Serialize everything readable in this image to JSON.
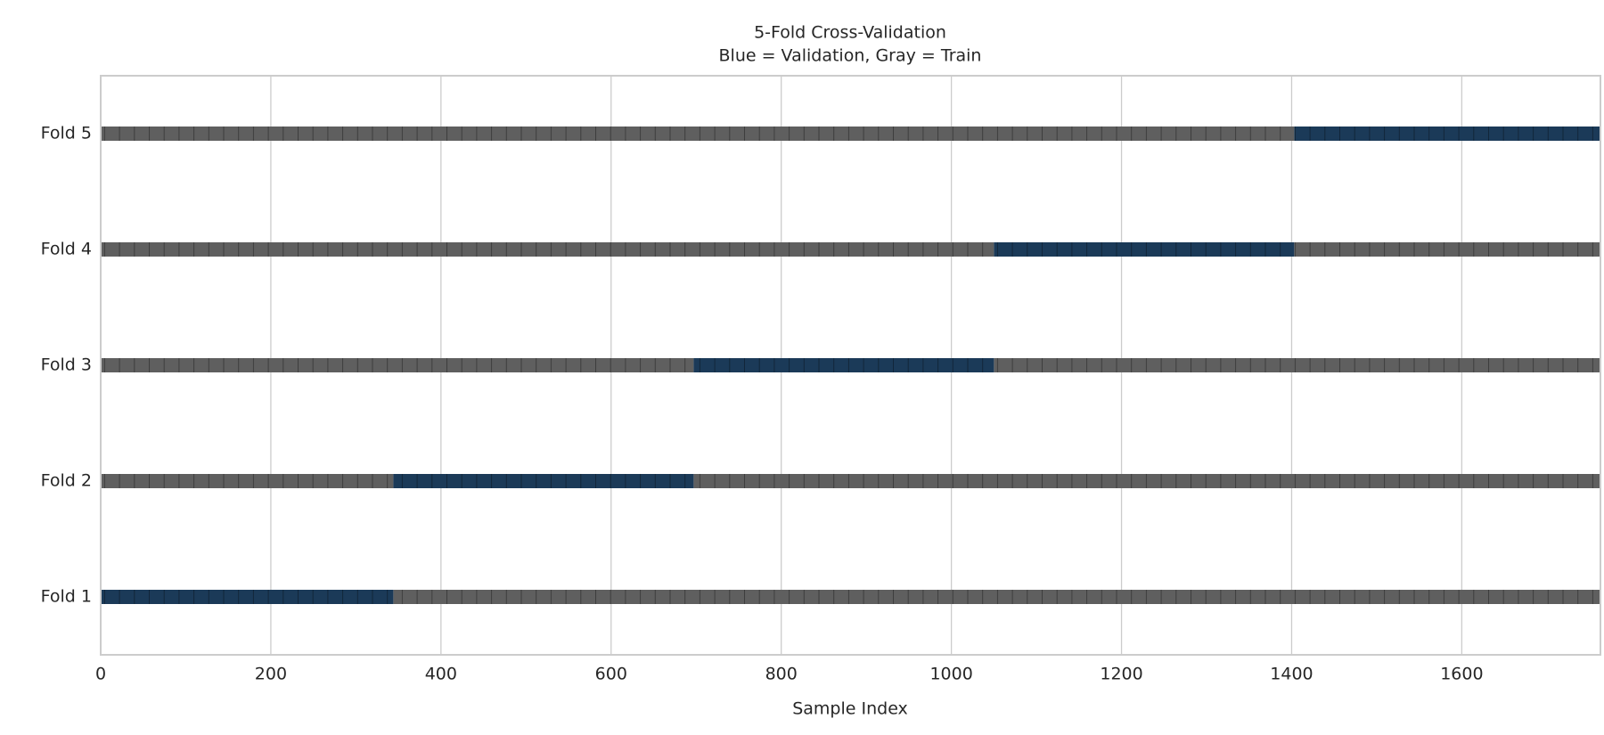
{
  "chart_data": {
    "type": "segments",
    "title": [
      "5-Fold Cross-Validation",
      "Blue = Validation, Gray = Train"
    ],
    "x_label": "Sample Index",
    "categories": [
      "Fold 1",
      "Fold 2",
      "Fold 3",
      "Fold 4",
      "Fold 5"
    ],
    "series": [
      {
        "name": "Train",
        "color": "#5f5f5f",
        "ranges": [
          [
            [
              344,
              1763
            ]
          ],
          [
            [
              0,
              344
            ],
            [
              697,
              1763
            ]
          ],
          [
            [
              0,
              697
            ],
            [
              1050,
              1763
            ]
          ],
          [
            [
              0,
              1050
            ],
            [
              1403,
              1763
            ]
          ],
          [
            [
              0,
              1403
            ]
          ]
        ]
      },
      {
        "name": "Validation",
        "color": "#1b3a58",
        "ranges": [
          [
            [
              0,
              344
            ]
          ],
          [
            [
              344,
              697
            ]
          ],
          [
            [
              697,
              1050
            ]
          ],
          [
            [
              1050,
              1403
            ]
          ],
          [
            [
              1403,
              1763
            ]
          ]
        ]
      }
    ],
    "xlim": [
      0,
      1763
    ],
    "xticks": [
      0,
      200,
      400,
      600,
      800,
      1000,
      1200,
      1400,
      1600
    ],
    "grid": true
  }
}
